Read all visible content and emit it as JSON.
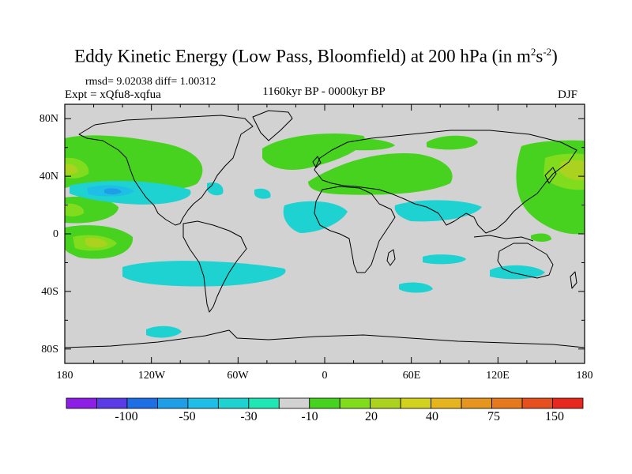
{
  "title": {
    "main": "Eddy Kinetic Energy (Low Pass, Bloomfield) at 200 hPa (in m",
    "sup1": "2",
    "mid": "s",
    "sup2": "-2",
    "end": ")"
  },
  "stats": "rmsd= 9.02038 diff= 1.00312",
  "expt": "Expt = xQfu8-xqfua",
  "period": "1160kyr BP - 0000kyr BP",
  "season": "DJF",
  "lat_labels": [
    "80N",
    "40N",
    "0",
    "40S",
    "80S"
  ],
  "lon_labels": [
    "180",
    "120W",
    "60W",
    "0",
    "60E",
    "120E",
    "180"
  ],
  "colorbar": {
    "colors": [
      "#8c1ee6",
      "#5a3ce6",
      "#1e6ee6",
      "#1e9ee6",
      "#1ebee6",
      "#1ed2d2",
      "#1ee6b4",
      "#d2d2d2",
      "#46d21e",
      "#82dc1e",
      "#aad21e",
      "#d2d21e",
      "#e6b41e",
      "#e6961e",
      "#e6781e",
      "#e6501e",
      "#e6281e"
    ],
    "labels": [
      "-100",
      "-50",
      "-30",
      "-10",
      "20",
      "40",
      "75",
      "150"
    ]
  },
  "map": {
    "background": "#d2d2d2",
    "lon_range": [
      -180,
      180
    ],
    "lat_range": [
      -90,
      90
    ]
  }
}
